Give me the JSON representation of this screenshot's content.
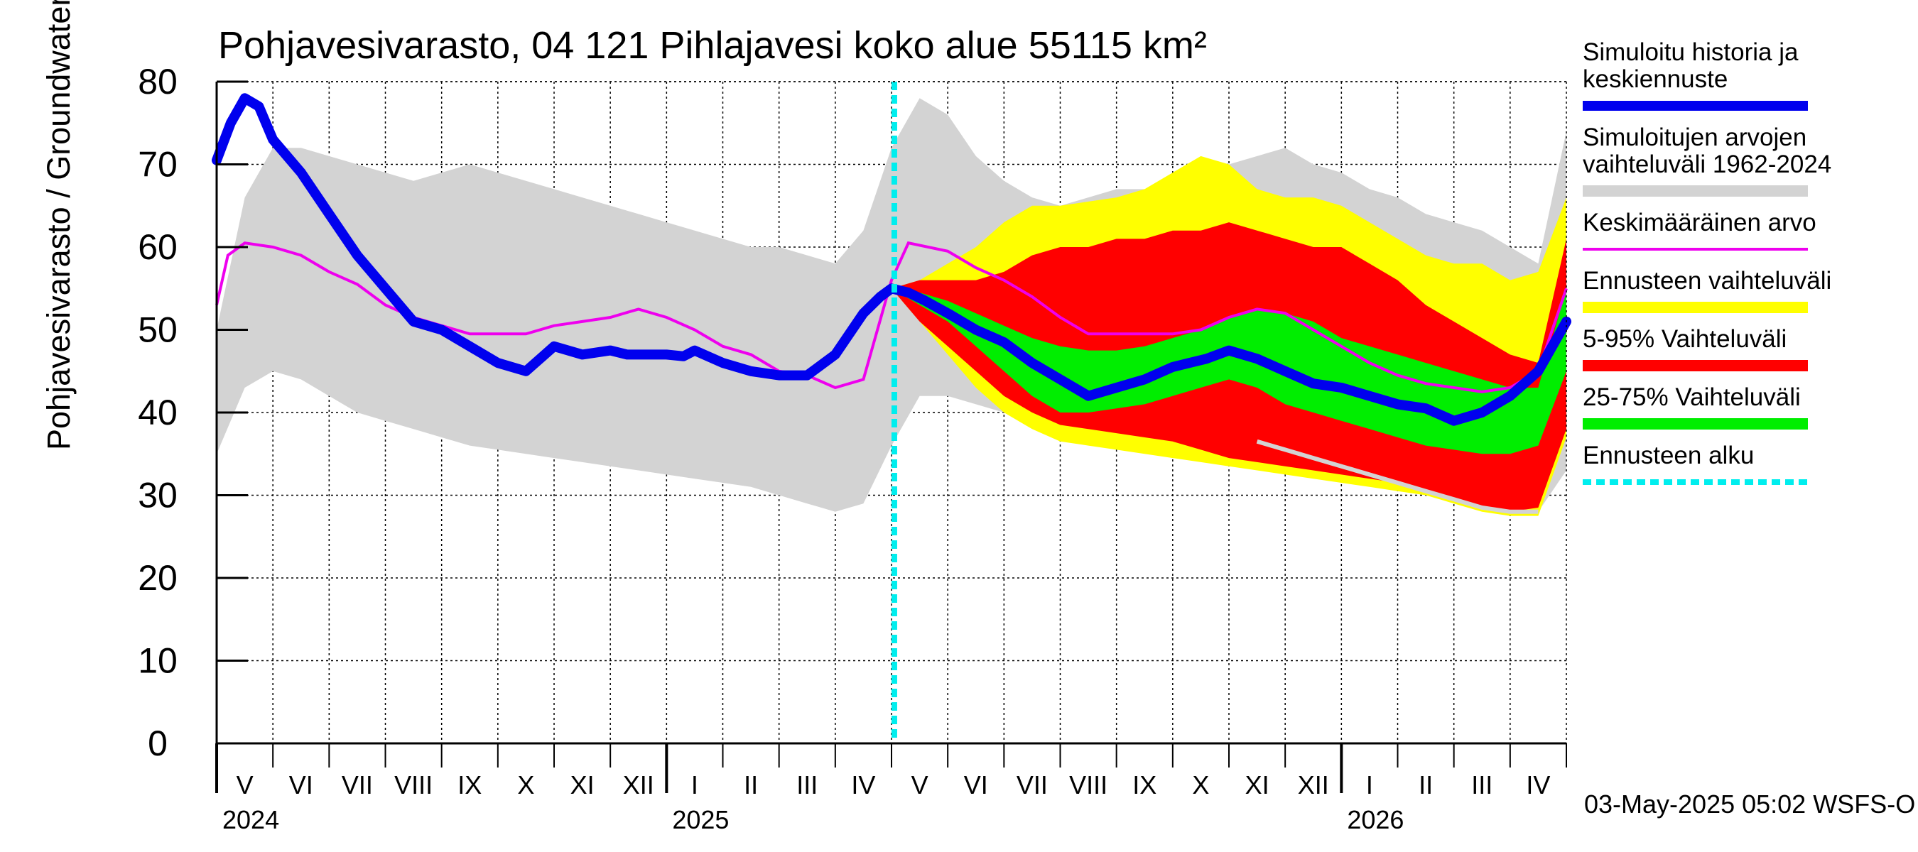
{
  "chart_data": {
    "type": "area",
    "title": "Pohjavesivarasto, 04 121 Pihlajavesi koko alue 55115 km²",
    "ylabel": "Pohjavesivarasto / Groundwater storage   mm",
    "ylim": [
      0,
      80
    ],
    "yticks": [
      0,
      10,
      20,
      30,
      40,
      50,
      60,
      70,
      80
    ],
    "xlim": [
      0,
      24
    ],
    "month_labels": [
      "V",
      "VI",
      "VII",
      "VIII",
      "IX",
      "X",
      "XI",
      "XII",
      "I",
      "II",
      "III",
      "IV",
      "V",
      "VI",
      "VII",
      "VIII",
      "IX",
      "X",
      "XI",
      "XII",
      "I",
      "II",
      "III",
      "IV"
    ],
    "year_labels": [
      {
        "label": "2024",
        "month_index": 0
      },
      {
        "label": "2025",
        "month_index": 8
      },
      {
        "label": "2026",
        "month_index": 20
      }
    ],
    "forecast_start_x": 12.05,
    "timestamp": "03-May-2025 05:02 WSFS-O",
    "legend": [
      {
        "label": "Simuloitu historia ja keskiennuste",
        "lines": [
          "Simuloitu historia ja",
          "keskiennuste"
        ],
        "color": "#0000ee",
        "kind": "thick"
      },
      {
        "label": "Simuloitujen arvojen vaihteluväli 1962-2024",
        "lines": [
          "Simuloitujen arvojen",
          "vaihteluväli 1962-2024"
        ],
        "color": "#d3d3d3",
        "kind": "band"
      },
      {
        "label": "Keskimääräinen arvo",
        "lines": [
          "Keskimääräinen arvo"
        ],
        "color": "#ee00ee",
        "kind": "thin"
      },
      {
        "label": "Ennusteen vaihteluväli",
        "lines": [
          "Ennusteen vaihteluväli"
        ],
        "color": "#ffff00",
        "kind": "band"
      },
      {
        "label": "5-95% Vaihteluväli",
        "lines": [
          "5-95% Vaihteluväli"
        ],
        "color": "#ff0000",
        "kind": "band"
      },
      {
        "label": "25-75% Vaihteluväli",
        "lines": [
          "25-75% Vaihteluväli"
        ],
        "color": "#00ee00",
        "kind": "band"
      },
      {
        "label": "Ennusteen alku",
        "lines": [
          "Ennusteen alku"
        ],
        "color": "#00eeee",
        "kind": "dashed"
      }
    ],
    "series": {
      "history_range": {
        "x": [
          0,
          0.5,
          1,
          1.5,
          2,
          2.5,
          3,
          3.5,
          4,
          4.5,
          5,
          5.5,
          6,
          6.5,
          7,
          7.5,
          8,
          8.5,
          9,
          9.5,
          10,
          10.5,
          11,
          11.5,
          12,
          12.5,
          13,
          13.5,
          14,
          14.5,
          15,
          15.5,
          16,
          16.5,
          17,
          17.5,
          18,
          18.5,
          19,
          19.5,
          20,
          20.5,
          21,
          21.5,
          22,
          22.5,
          23,
          23.5,
          24
        ],
        "lower": [
          35,
          43,
          45,
          44,
          42,
          40,
          39,
          38,
          37,
          36,
          35.5,
          35,
          34.5,
          34,
          33.5,
          33,
          32.5,
          32,
          31.5,
          31,
          30,
          29,
          28,
          29,
          36,
          42,
          42,
          41,
          40,
          39,
          38.5,
          38,
          37.5,
          37,
          36.5,
          36,
          35.5,
          35,
          34.5,
          34,
          33,
          32,
          31,
          30,
          29.5,
          29,
          28.5,
          28,
          33
        ],
        "upper": [
          50,
          66,
          72,
          72,
          71,
          70,
          69,
          68,
          69,
          70,
          69,
          68,
          67,
          66,
          65,
          64,
          63,
          62,
          61,
          60,
          60,
          59,
          58,
          62,
          72,
          78,
          76,
          71,
          68,
          66,
          65,
          66,
          67,
          67,
          68,
          69,
          70,
          71,
          72,
          70,
          69,
          67,
          66,
          64,
          63,
          62,
          60,
          58,
          74
        ]
      },
      "forecast_range": {
        "x": [
          12,
          12.5,
          13,
          13.5,
          14,
          14.5,
          15,
          15.5,
          16,
          16.5,
          17,
          17.5,
          18,
          18.5,
          19,
          19.5,
          20,
          20.5,
          21,
          21.5,
          22,
          22.5,
          23,
          23.5,
          24
        ],
        "lower": [
          55,
          51,
          47,
          43,
          40,
          38,
          36.5,
          36,
          35.5,
          35,
          34.5,
          34,
          33.5,
          33,
          32.5,
          32,
          31.5,
          31,
          30.5,
          30,
          29,
          28,
          27.5,
          27.5,
          37
        ],
        "upper": [
          55,
          56,
          58,
          60,
          63,
          65,
          65,
          65.5,
          66,
          67,
          69,
          71,
          70,
          67,
          66,
          66,
          65,
          63,
          61,
          59,
          58,
          58,
          56,
          57,
          66
        ]
      },
      "p5_95": {
        "x": [
          12,
          12.5,
          13,
          13.5,
          14,
          14.5,
          15,
          15.5,
          16,
          16.5,
          17,
          17.5,
          18,
          18.5,
          19,
          19.5,
          20,
          20.5,
          21,
          21.5,
          22,
          22.5,
          23,
          23.5,
          24
        ],
        "lower": [
          55,
          51,
          48,
          45,
          42,
          40,
          38.5,
          38,
          37.5,
          37,
          36.5,
          35.5,
          34.5,
          34,
          33.5,
          33,
          32.5,
          32,
          31.5,
          30.5,
          29.5,
          28.5,
          28,
          28.5,
          38
        ],
        "upper": [
          55,
          56,
          56,
          56,
          57,
          59,
          60,
          60,
          61,
          61,
          62,
          62,
          63,
          62,
          61,
          60,
          60,
          58,
          56,
          53,
          51,
          49,
          47,
          46,
          61
        ]
      },
      "p25_75": {
        "x": [
          12,
          12.5,
          13,
          13.5,
          14,
          14.5,
          15,
          15.5,
          16,
          16.5,
          17,
          17.5,
          18,
          18.5,
          19,
          19.5,
          20,
          20.5,
          21,
          21.5,
          22,
          22.5,
          23,
          23.5,
          24
        ],
        "lower": [
          55,
          53,
          51,
          48,
          45,
          42,
          40,
          40,
          40.5,
          41,
          42,
          43,
          44,
          43,
          41,
          40,
          39,
          38,
          37,
          36,
          35.5,
          35,
          35,
          36,
          45
        ],
        "upper": [
          55,
          54.5,
          53.5,
          52,
          50.5,
          49,
          48,
          47.5,
          47.5,
          48,
          49,
          50,
          51.5,
          52.5,
          52,
          51,
          49,
          48,
          47,
          46,
          45,
          44,
          43,
          43,
          55
        ]
      },
      "mean": {
        "x": [
          0,
          0.2,
          0.5,
          1,
          1.5,
          2,
          2.5,
          3,
          3.5,
          4,
          4.5,
          5,
          5.5,
          6,
          6.5,
          7,
          7.5,
          8,
          8.5,
          9,
          9.5,
          10,
          10.5,
          11,
          11.5,
          12,
          12.3,
          13,
          13.5,
          14,
          14.5,
          15,
          15.5,
          16,
          16.5,
          17,
          17.5,
          18,
          18.5,
          19,
          19.5,
          20,
          20.5,
          21,
          21.5,
          22,
          22.5,
          23,
          23.5,
          24
        ],
        "y": [
          53,
          59,
          60.5,
          60,
          59,
          57,
          55.5,
          53,
          51.5,
          50.5,
          49.5,
          49.5,
          49.5,
          50.5,
          51,
          51.5,
          52.5,
          51.5,
          50,
          48,
          47,
          45,
          44.5,
          43,
          44,
          56,
          60.5,
          59.5,
          57.5,
          56,
          54,
          51.5,
          49.5,
          49.5,
          49.5,
          49.5,
          50,
          51.5,
          52.5,
          52,
          50,
          48,
          46,
          44.5,
          43.5,
          43,
          42.5,
          43,
          45,
          55
        ]
      },
      "forecast_median_path": {
        "x": [
          18.5,
          19,
          19.5,
          20,
          20.5,
          21,
          21.5,
          22,
          22.5,
          23,
          23.5
        ],
        "y": [
          36.5,
          35.5,
          34.5,
          33.5,
          32.5,
          31.5,
          30.5,
          29.5,
          28.5,
          28,
          28
        ]
      },
      "simulated": {
        "x": [
          0,
          0.25,
          0.5,
          0.75,
          1,
          1.5,
          2,
          2.5,
          3,
          3.5,
          4,
          4.5,
          5,
          5.5,
          6,
          6.5,
          7,
          7.3,
          7.5,
          7.7,
          8,
          8.3,
          8.5,
          9,
          9.5,
          10,
          10.5,
          11,
          11.5,
          11.8,
          12,
          12.3,
          12.6,
          13,
          13.5,
          14,
          14.5,
          15,
          15.5,
          16,
          16.5,
          17,
          17.3,
          17.6,
          18,
          18.5,
          19,
          19.5,
          20,
          20.5,
          21,
          21.5,
          22,
          22.5,
          23,
          23.5,
          24
        ],
        "y": [
          70.5,
          75,
          78,
          77,
          73,
          69,
          64,
          59,
          55,
          51,
          50,
          48,
          46,
          45,
          48,
          47,
          47.5,
          47,
          47,
          47,
          47,
          46.8,
          47.5,
          46,
          45,
          44.5,
          44.5,
          47,
          52,
          54,
          55,
          54.5,
          53.5,
          52,
          50,
          48.5,
          46,
          44,
          42,
          43,
          44,
          45.5,
          46,
          46.5,
          47.5,
          46.5,
          45,
          43.5,
          43,
          42,
          41,
          40.5,
          39,
          40,
          42,
          45,
          51
        ]
      }
    }
  }
}
